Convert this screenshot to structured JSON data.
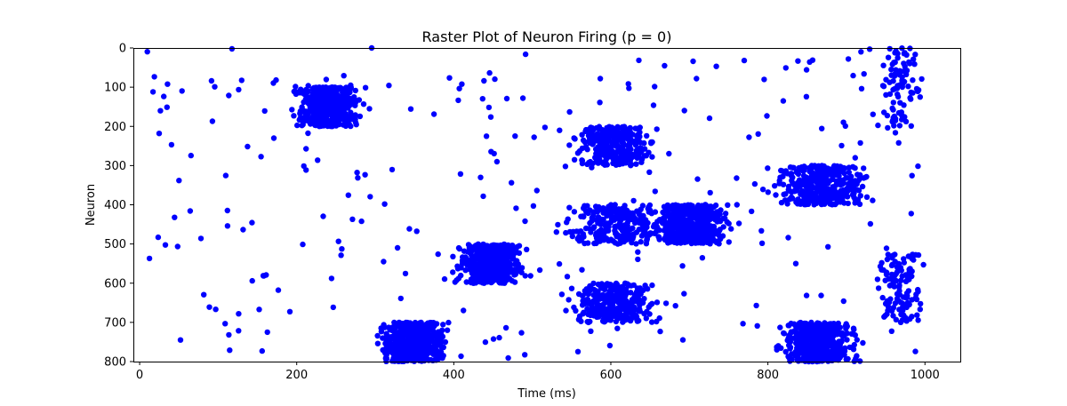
{
  "chart_data": {
    "type": "scatter",
    "title": "Raster Plot of Neuron Firing (p = 0)",
    "xlabel": "Time (ms)",
    "ylabel": "Neuron",
    "xlim": [
      -8,
      1045
    ],
    "ylim": [
      800,
      0
    ],
    "y_inverted": true,
    "x_ticks": [
      0,
      200,
      400,
      600,
      800,
      1000
    ],
    "y_ticks": [
      0,
      100,
      200,
      300,
      400,
      500,
      600,
      700,
      800
    ],
    "grid": false,
    "legend": "none",
    "marker_color": "#0000ff",
    "clusters": [
      {
        "x_range": [
          195,
          285
        ],
        "neuron_range": [
          100,
          200
        ],
        "spikes": 520
      },
      {
        "x_range": [
          300,
          395
        ],
        "neuron_range": [
          700,
          800
        ],
        "spikes": 520
      },
      {
        "x_range": [
          400,
          495
        ],
        "neuron_range": [
          500,
          600
        ],
        "spikes": 460
      },
      {
        "x_range": [
          550,
          660
        ],
        "neuron_range": [
          200,
          300
        ],
        "spikes": 330
      },
      {
        "x_range": [
          540,
          665
        ],
        "neuron_range": [
          600,
          700
        ],
        "spikes": 300
      },
      {
        "x_range": [
          530,
          690
        ],
        "neuron_range": [
          400,
          500
        ],
        "spikes": 260
      },
      {
        "x_range": [
          650,
          760
        ],
        "neuron_range": [
          400,
          500
        ],
        "spikes": 480
      },
      {
        "x_range": [
          800,
          935
        ],
        "neuron_range": [
          300,
          400
        ],
        "spikes": 380
      },
      {
        "x_range": [
          810,
          920
        ],
        "neuron_range": [
          700,
          800
        ],
        "spikes": 470
      },
      {
        "x_range": [
          935,
          1000
        ],
        "neuron_range": [
          0,
          200
        ],
        "spikes": 80
      },
      {
        "x_range": [
          935,
          1000
        ],
        "neuron_range": [
          500,
          700
        ],
        "spikes": 110
      }
    ],
    "background_spikes": 260
  }
}
